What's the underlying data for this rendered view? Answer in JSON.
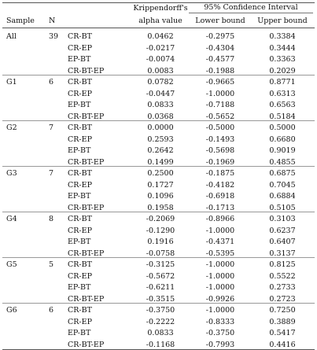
{
  "header": {
    "sample": "Sample",
    "n": "N",
    "kripp_line1": "Krippendorff's",
    "kripp_line2": "alpha value",
    "ci": "95% Confidence Interval",
    "lower": "Lower bound",
    "upper": "Upper bound"
  },
  "groups": [
    {
      "sample": "All",
      "n": "39",
      "rows": [
        {
          "pair": "CR-BT",
          "alpha": "0.0462",
          "lower": "-0.2975",
          "upper": "0.3384"
        },
        {
          "pair": "CR-EP",
          "alpha": "-0.0217",
          "lower": "-0.4304",
          "upper": "0.3444"
        },
        {
          "pair": "EP-BT",
          "alpha": "-0.0074",
          "lower": "-0.4577",
          "upper": "0.3363"
        },
        {
          "pair": "CR-BT-EP",
          "alpha": "0.0083",
          "lower": "-0.1988",
          "upper": "0.2029"
        }
      ]
    },
    {
      "sample": "G1",
      "n": "6",
      "rows": [
        {
          "pair": "CR-BT",
          "alpha": "0.0782",
          "lower": "-0.9665",
          "upper": "0.8771"
        },
        {
          "pair": "CR-EP",
          "alpha": "-0.0447",
          "lower": "-1.0000",
          "upper": "0.6313"
        },
        {
          "pair": "EP-BT",
          "alpha": "0.0833",
          "lower": "-0.7188",
          "upper": "0.6563"
        },
        {
          "pair": "CR-BT-EP",
          "alpha": "0.0368",
          "lower": "-0.5652",
          "upper": "0.5184"
        }
      ]
    },
    {
      "sample": "G2",
      "n": "7",
      "rows": [
        {
          "pair": "CR-BT",
          "alpha": "0.0000",
          "lower": "-0.5000",
          "upper": "0.5000"
        },
        {
          "pair": "CR-EP",
          "alpha": "0.2593",
          "lower": "-0.1493",
          "upper": "0.6680"
        },
        {
          "pair": "EP-BT",
          "alpha": "0.2642",
          "lower": "-0.5698",
          "upper": "0.9019"
        },
        {
          "pair": "CR-BT-EP",
          "alpha": "0.1499",
          "lower": "-0.1969",
          "upper": "0.4855"
        }
      ]
    },
    {
      "sample": "G3",
      "n": "7",
      "rows": [
        {
          "pair": "CR-BT",
          "alpha": "0.2500",
          "lower": "-0.1875",
          "upper": "0.6875"
        },
        {
          "pair": "CR-EP",
          "alpha": "0.1727",
          "lower": "-0.4182",
          "upper": "0.7045"
        },
        {
          "pair": "EP-BT",
          "alpha": "0.1096",
          "lower": "-0.6918",
          "upper": "0.6884"
        },
        {
          "pair": "CR-BT-EP",
          "alpha": "0.1958",
          "lower": "-0.1713",
          "upper": "0.5105"
        }
      ]
    },
    {
      "sample": "G4",
      "n": "8",
      "rows": [
        {
          "pair": "CR-BT",
          "alpha": "-0.2069",
          "lower": "-0.8966",
          "upper": "0.3103"
        },
        {
          "pair": "CR-EP",
          "alpha": "-0.1290",
          "lower": "-1.0000",
          "upper": "0.6237"
        },
        {
          "pair": "EP-BT",
          "alpha": "0.1916",
          "lower": "-0.4371",
          "upper": "0.6407"
        },
        {
          "pair": "CR-BT-EP",
          "alpha": "-0.0758",
          "lower": "-0.5395",
          "upper": "0.3137"
        }
      ]
    },
    {
      "sample": "G5",
      "n": "5",
      "rows": [
        {
          "pair": "CR-BT",
          "alpha": "-0.3125",
          "lower": "-1.0000",
          "upper": "0.8125"
        },
        {
          "pair": "CR-EP",
          "alpha": "-0.5672",
          "lower": "-1.0000",
          "upper": "0.5522"
        },
        {
          "pair": "EP-BT",
          "alpha": "-0.6211",
          "lower": "-1.0000",
          "upper": "0.2733"
        },
        {
          "pair": "CR-BT-EP",
          "alpha": "-0.3515",
          "lower": "-0.9926",
          "upper": "0.2723"
        }
      ]
    },
    {
      "sample": "G6",
      "n": "6",
      "rows": [
        {
          "pair": "CR-BT",
          "alpha": "-0.3750",
          "lower": "-1.0000",
          "upper": "0.7250"
        },
        {
          "pair": "CR-EP",
          "alpha": "-0.2222",
          "lower": "-0.8333",
          "upper": "0.3889"
        },
        {
          "pair": "EP-BT",
          "alpha": "0.0833",
          "lower": "-0.3750",
          "upper": "0.5417"
        },
        {
          "pair": "CR-BT-EP",
          "alpha": "-0.1168",
          "lower": "-0.7993",
          "upper": "0.4416"
        }
      ]
    }
  ]
}
